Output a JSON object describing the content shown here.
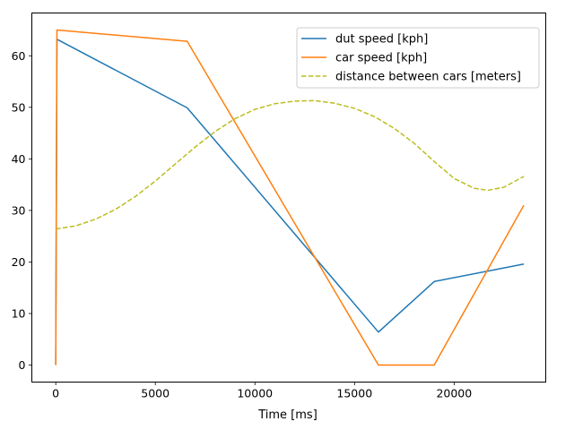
{
  "chart_data": {
    "type": "line",
    "title": "",
    "xlabel": "Time [ms]",
    "ylabel": "",
    "xlim": [
      -1200,
      24600
    ],
    "ylim": [
      -3.3,
      68.3
    ],
    "xticks": [
      0,
      5000,
      10000,
      15000,
      20000
    ],
    "yticks": [
      0,
      10,
      20,
      30,
      40,
      50,
      60
    ],
    "grid": false,
    "legend_position": "top-right",
    "series": [
      {
        "name": "dut speed [kph]",
        "color": "#1f77b4",
        "dash": "solid",
        "x": [
          0,
          60,
          6600,
          16200,
          19000,
          23500
        ],
        "y": [
          0,
          63.2,
          49.9,
          6.4,
          16.2,
          19.6
        ]
      },
      {
        "name": "car speed [kph]",
        "color": "#ff7f0e",
        "dash": "solid",
        "x": [
          0,
          60,
          6600,
          16200,
          19000,
          23500
        ],
        "y": [
          0,
          65.0,
          62.8,
          0,
          0,
          31.0
        ]
      },
      {
        "name": "distance between cars [meters]",
        "color": "#bcbd22",
        "dash": "dashed",
        "x": [
          0,
          1000,
          2000,
          3000,
          4000,
          5000,
          6000,
          7000,
          8000,
          9000,
          10000,
          11000,
          12000,
          13000,
          14000,
          15000,
          16000,
          17000,
          18000,
          19000,
          20000,
          21000,
          21700,
          22500,
          23500
        ],
        "y": [
          26.4,
          27.0,
          28.3,
          30.2,
          32.7,
          35.7,
          39.0,
          42.3,
          45.3,
          47.8,
          49.6,
          50.7,
          51.2,
          51.3,
          50.8,
          49.8,
          48.2,
          45.9,
          43.0,
          39.5,
          36.2,
          34.3,
          33.9,
          34.5,
          36.6
        ]
      }
    ]
  }
}
